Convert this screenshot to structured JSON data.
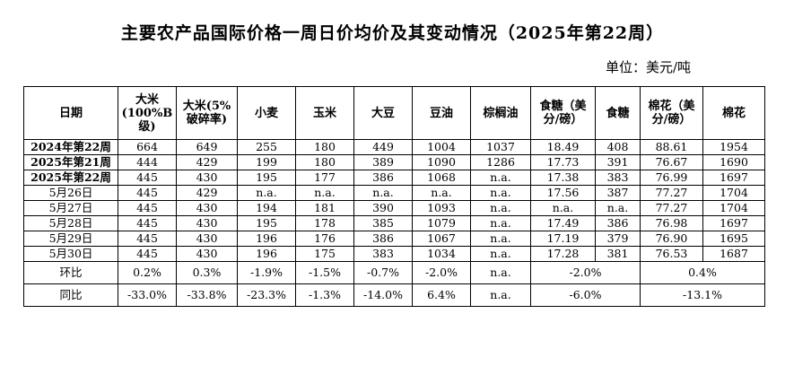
{
  "title": "主要农产品国际价格一周日价均价及其变动情况（2025年第22周）",
  "unit": "单位：美元/吨",
  "headers": [
    "日期",
    "大米(100%B级)",
    "大米(5%破碎率)",
    "小麦",
    "玉米",
    "大豆",
    "豆油",
    "棕榈油",
    "食糖（美分/磅）",
    "食糖",
    "棉花（美分/磅）",
    "棉花"
  ],
  "rows": [
    {
      "date": "2024年第22周",
      "values": [
        "664",
        "649",
        "255",
        "180",
        "449",
        "1004",
        "1037",
        "18.49",
        "408",
        "88.61",
        "1954"
      ]
    },
    {
      "date": "2025年第21周",
      "values": [
        "444",
        "429",
        "199",
        "180",
        "389",
        "1090",
        "1286",
        "17.73",
        "391",
        "76.67",
        "1690"
      ]
    },
    {
      "date": "2025年第22周",
      "values": [
        "445",
        "430",
        "195",
        "177",
        "386",
        "1068",
        "n.a.",
        "17.38",
        "383",
        "76.99",
        "1697"
      ]
    },
    {
      "date": "5月26日",
      "values": [
        "445",
        "429",
        "n.a.",
        "n.a.",
        "n.a.",
        "n.a.",
        "n.a.",
        "17.56",
        "387",
        "77.27",
        "1704"
      ]
    },
    {
      "date": "5月27日",
      "values": [
        "445",
        "430",
        "194",
        "181",
        "390",
        "1093",
        "n.a.",
        "n.a.",
        "n.a.",
        "77.27",
        "1704"
      ]
    },
    {
      "date": "5月28日",
      "values": [
        "445",
        "430",
        "195",
        "178",
        "385",
        "1079",
        "n.a.",
        "17.49",
        "386",
        "76.98",
        "1697"
      ]
    },
    {
      "date": "5月29日",
      "values": [
        "445",
        "430",
        "196",
        "176",
        "386",
        "1067",
        "n.a.",
        "17.19",
        "379",
        "76.90",
        "1695"
      ]
    },
    {
      "date": "5月30日",
      "values": [
        "445",
        "430",
        "196",
        "175",
        "383",
        "1034",
        "n.a.",
        "17.28",
        "381",
        "76.53",
        "1687"
      ]
    }
  ],
  "summary": [
    {
      "label": "环比",
      "values": [
        "0.2%",
        "0.3%",
        "-1.9%",
        "-1.5%",
        "-0.7%",
        "-2.0%",
        "n.a."
      ],
      "sugar": "-2.0%",
      "cotton": "0.4%"
    },
    {
      "label": "同比",
      "values": [
        "-33.0%",
        "-33.8%",
        "-23.3%",
        "-1.3%",
        "-14.0%",
        "6.4%",
        "n.a."
      ],
      "sugar": "-6.0%",
      "cotton": "-13.1%"
    }
  ]
}
